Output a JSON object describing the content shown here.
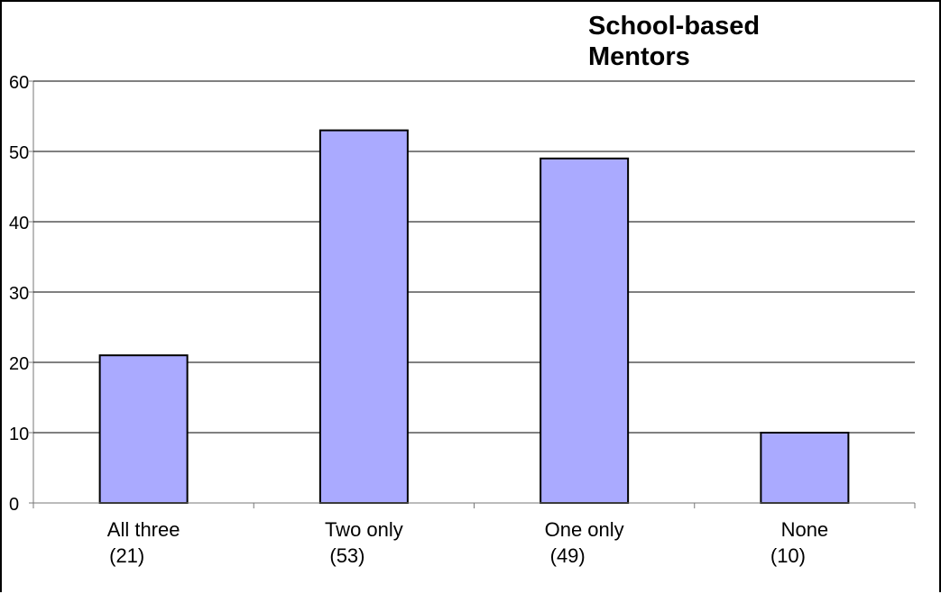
{
  "chart_data": {
    "type": "bar",
    "title_lines": [
      "School-based",
      "Mentors"
    ],
    "categories": [
      "All three",
      "Two only",
      "One only",
      "None"
    ],
    "category_counts": [
      "(21)",
      "(53)",
      "(49)",
      "(10)"
    ],
    "values": [
      21,
      53,
      49,
      10
    ],
    "ylim": [
      0,
      60
    ],
    "yticks": [
      0,
      10,
      20,
      30,
      40,
      50,
      60
    ],
    "xlabel": "",
    "ylabel": "",
    "grid": true,
    "colors": {
      "bar_fill": "#aaaaff",
      "bar_stroke": "#000000",
      "grid": "#000000"
    }
  }
}
